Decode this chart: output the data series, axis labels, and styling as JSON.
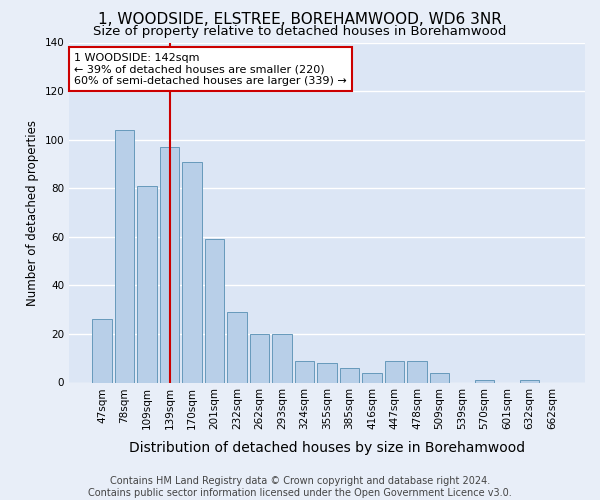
{
  "title": "1, WOODSIDE, ELSTREE, BOREHAMWOOD, WD6 3NR",
  "subtitle": "Size of property relative to detached houses in Borehamwood",
  "xlabel": "Distribution of detached houses by size in Borehamwood",
  "ylabel": "Number of detached properties",
  "categories": [
    "47sqm",
    "78sqm",
    "109sqm",
    "139sqm",
    "170sqm",
    "201sqm",
    "232sqm",
    "262sqm",
    "293sqm",
    "324sqm",
    "355sqm",
    "385sqm",
    "416sqm",
    "447sqm",
    "478sqm",
    "509sqm",
    "539sqm",
    "570sqm",
    "601sqm",
    "632sqm",
    "662sqm"
  ],
  "values": [
    26,
    104,
    81,
    97,
    91,
    59,
    29,
    20,
    20,
    9,
    8,
    6,
    4,
    9,
    9,
    4,
    0,
    1,
    0,
    1,
    0
  ],
  "bar_color": "#b8cfe8",
  "bar_edge_color": "#6699bb",
  "vline_color": "#cc0000",
  "vline_x": 3,
  "annotation_text": "1 WOODSIDE: 142sqm\n← 39% of detached houses are smaller (220)\n60% of semi-detached houses are larger (339) →",
  "annotation_box_color": "#ffffff",
  "annotation_box_edge_color": "#cc0000",
  "ylim": [
    0,
    140
  ],
  "yticks": [
    0,
    20,
    40,
    60,
    80,
    100,
    120,
    140
  ],
  "plot_bg_color": "#dce6f5",
  "fig_bg_color": "#e8eef8",
  "grid_color": "#ffffff",
  "footer_text": "Contains HM Land Registry data © Crown copyright and database right 2024.\nContains public sector information licensed under the Open Government Licence v3.0.",
  "title_fontsize": 11,
  "subtitle_fontsize": 9.5,
  "xlabel_fontsize": 10,
  "ylabel_fontsize": 8.5,
  "tick_fontsize": 7.5,
  "annotation_fontsize": 8,
  "footer_fontsize": 7
}
